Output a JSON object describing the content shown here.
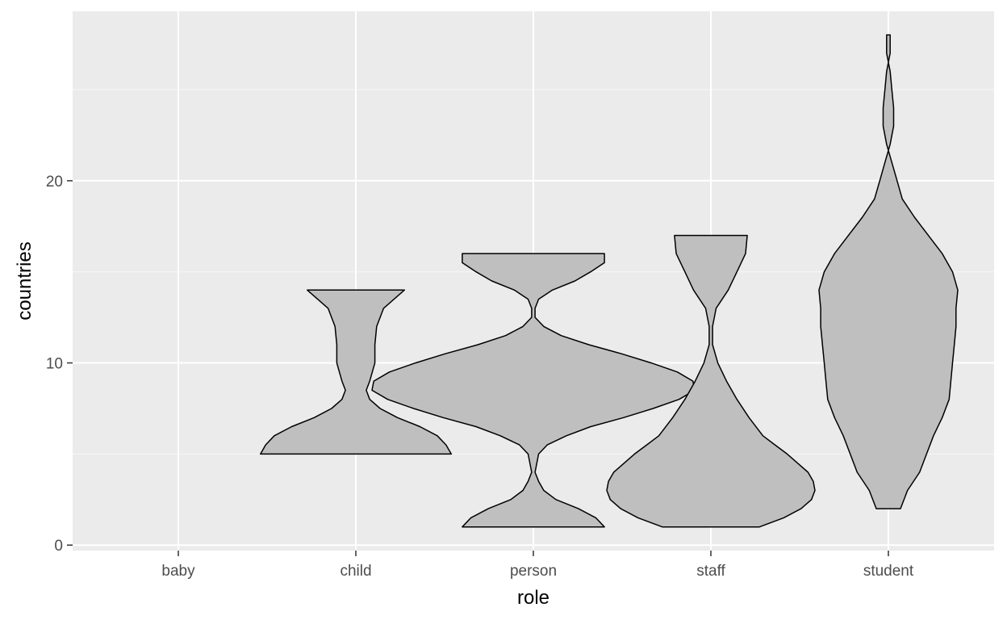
{
  "chart_data": {
    "type": "violin",
    "xlabel": "role",
    "ylabel": "countries",
    "categories": [
      "baby",
      "child",
      "person",
      "staff",
      "student"
    ],
    "ylim": [
      -0.3,
      29.3
    ],
    "y_major_ticks": [
      0,
      10,
      20
    ],
    "y_minor_ticks": [
      5,
      15,
      25
    ],
    "grid": true,
    "colors": {
      "panel_background": "#ebebeb",
      "grid_major": "#ffffff",
      "grid_minor": "#f7f7f7",
      "violin_fill": "#bfbfbf",
      "violin_stroke": "#000000"
    },
    "series": [
      {
        "category": "baby",
        "profile": []
      },
      {
        "category": "child",
        "profile": [
          [
            5,
            0.55
          ],
          [
            5.5,
            0.52
          ],
          [
            6,
            0.47
          ],
          [
            6.5,
            0.37
          ],
          [
            7,
            0.24
          ],
          [
            7.5,
            0.14
          ],
          [
            8,
            0.08
          ],
          [
            8.5,
            0.06
          ],
          [
            9,
            0.08
          ],
          [
            10,
            0.11
          ],
          [
            11,
            0.11
          ],
          [
            12,
            0.12
          ],
          [
            13,
            0.16
          ],
          [
            14,
            0.28
          ]
        ]
      },
      {
        "category": "person",
        "profile": [
          [
            1,
            0.41
          ],
          [
            1.5,
            0.36
          ],
          [
            2,
            0.26
          ],
          [
            2.5,
            0.13
          ],
          [
            3,
            0.06
          ],
          [
            3.5,
            0.03
          ],
          [
            4,
            0.01
          ],
          [
            5,
            0.03
          ],
          [
            5.5,
            0.08
          ],
          [
            6,
            0.19
          ],
          [
            6.5,
            0.33
          ],
          [
            7,
            0.52
          ],
          [
            7.5,
            0.69
          ],
          [
            8,
            0.84
          ],
          [
            8.5,
            0.93
          ],
          [
            9,
            0.92
          ],
          [
            9.5,
            0.83
          ],
          [
            10,
            0.68
          ],
          [
            10.5,
            0.51
          ],
          [
            11,
            0.32
          ],
          [
            11.5,
            0.16
          ],
          [
            12,
            0.06
          ],
          [
            12.5,
            0.01
          ],
          [
            13,
            0.01
          ],
          [
            13.5,
            0.03
          ],
          [
            14,
            0.11
          ],
          [
            14.5,
            0.24
          ],
          [
            15,
            0.33
          ],
          [
            15.5,
            0.41
          ],
          [
            16,
            0.41
          ]
        ]
      },
      {
        "category": "staff",
        "profile": [
          [
            1,
            0.28
          ],
          [
            1.5,
            0.42
          ],
          [
            2,
            0.52
          ],
          [
            2.5,
            0.58
          ],
          [
            3,
            0.6
          ],
          [
            3.5,
            0.59
          ],
          [
            4,
            0.56
          ],
          [
            4.5,
            0.5
          ],
          [
            5,
            0.44
          ],
          [
            5.5,
            0.37
          ],
          [
            6,
            0.3
          ],
          [
            7,
            0.22
          ],
          [
            8,
            0.15
          ],
          [
            9,
            0.09
          ],
          [
            10,
            0.04
          ],
          [
            11,
            0.01
          ],
          [
            12,
            0.01
          ],
          [
            13,
            0.03
          ],
          [
            14,
            0.1
          ],
          [
            15,
            0.15
          ],
          [
            16,
            0.2
          ],
          [
            17,
            0.21
          ]
        ]
      },
      {
        "category": "student",
        "profile": [
          [
            2,
            0.07
          ],
          [
            3,
            0.11
          ],
          [
            4,
            0.18
          ],
          [
            5,
            0.22
          ],
          [
            6,
            0.26
          ],
          [
            7,
            0.31
          ],
          [
            8,
            0.35
          ],
          [
            9,
            0.36
          ],
          [
            10,
            0.37
          ],
          [
            11,
            0.38
          ],
          [
            12,
            0.39
          ],
          [
            13,
            0.39
          ],
          [
            14,
            0.4
          ],
          [
            15,
            0.37
          ],
          [
            16,
            0.31
          ],
          [
            17,
            0.23
          ],
          [
            18,
            0.15
          ],
          [
            19,
            0.08
          ],
          [
            20,
            0.05
          ],
          [
            21,
            0.02
          ],
          [
            22,
            -0.01
          ],
          [
            23,
            -0.03
          ],
          [
            24,
            -0.03
          ],
          [
            25,
            -0.02
          ],
          [
            26,
            -0.01
          ],
          [
            27,
            0.01
          ],
          [
            28,
            0.01
          ]
        ]
      }
    ]
  }
}
